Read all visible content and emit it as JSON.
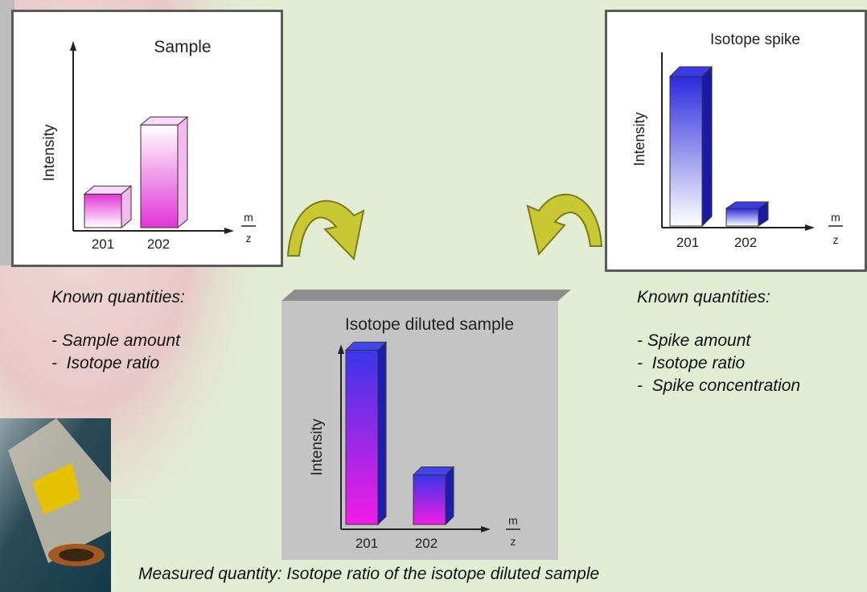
{
  "sample_panel": {
    "title": "Sample",
    "ylabel": "Intensity",
    "xlabel_num": "m",
    "xlabel_den": "z",
    "categories": [
      "201",
      "202"
    ],
    "values": [
      0.18,
      0.55
    ]
  },
  "spike_panel": {
    "title": "Isotope spike",
    "ylabel": "Intensity",
    "xlabel_num": "m",
    "xlabel_den": "z",
    "categories": [
      "201",
      "202"
    ],
    "values": [
      0.93,
      0.11
    ]
  },
  "diluted_panel": {
    "title": "Isotope diluted sample",
    "ylabel": "Intensity",
    "xlabel_num": "m",
    "xlabel_den": "z",
    "categories": [
      "201",
      "202"
    ],
    "values": [
      0.95,
      0.27
    ]
  },
  "left_text": {
    "heading": "Known quantities:",
    "items": [
      "- Sample amount",
      "-  Isotope ratio"
    ]
  },
  "right_text": {
    "heading": "Known quantities:",
    "items": [
      "- Spike amount",
      "-  Isotope ratio",
      "-  Spike concentration"
    ]
  },
  "measured": "Measured quantity: Isotope ratio of the isotope diluted sample",
  "colors": {
    "background": "#e2edd4",
    "sample_bar": "#ee22dd",
    "spike_bar": "#2222cc",
    "arrow": "#c8c832"
  }
}
